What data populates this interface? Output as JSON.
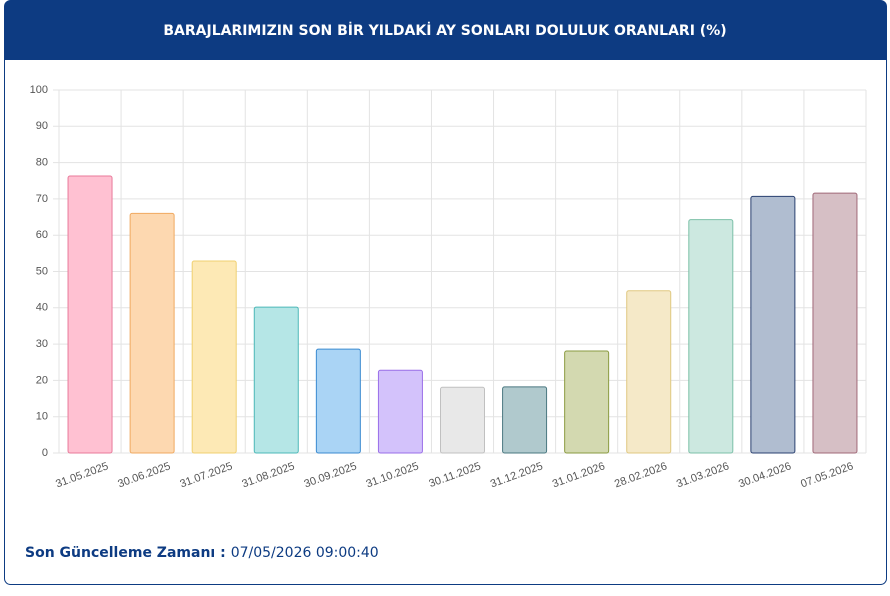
{
  "chart_data": {
    "type": "bar",
    "title": "BARAJLARIMIZIN SON BİR YILDAKİ AY SONLARI DOLULUK ORANLARI (%)",
    "categories": [
      "31.05.2025",
      "30.06.2025",
      "31.07.2025",
      "31.08.2025",
      "30.09.2025",
      "31.10.2025",
      "30.11.2025",
      "31.12.2025",
      "31.01.2026",
      "28.02.2026",
      "31.03.2026",
      "30.04.2026",
      "07.05.2026"
    ],
    "values": [
      76.3,
      66,
      52.9,
      40.2,
      28.6,
      22.8,
      18.1,
      18.2,
      28.1,
      44.7,
      64.3,
      70.7,
      71.6
    ],
    "colors": [
      "#ffc1d2",
      "#fdd8b0",
      "#fde9b5",
      "#b5e6e6",
      "#aad4f5",
      "#d3c2fb",
      "#e8e8e8",
      "#b0c9cd",
      "#d3d9b0",
      "#f5e9c8",
      "#cce8e0",
      "#b0bdd0",
      "#d6bfc5"
    ],
    "border_colors": [
      "#e8799a",
      "#f0a960",
      "#f0d070",
      "#4cb8b8",
      "#3a8ad0",
      "#9a6ee8",
      "#c0c0c0",
      "#4a7880",
      "#8a9a40",
      "#e0c880",
      "#7cc0a8",
      "#2a4070",
      "#a06878"
    ],
    "ylim": [
      0,
      100
    ],
    "yticks": [
      0,
      10,
      20,
      30,
      40,
      50,
      60,
      70,
      80,
      90,
      100
    ],
    "grid": true
  },
  "footer": {
    "label": "Son Güncelleme Zamanı :",
    "value": "07/05/2026 09:00:40"
  }
}
